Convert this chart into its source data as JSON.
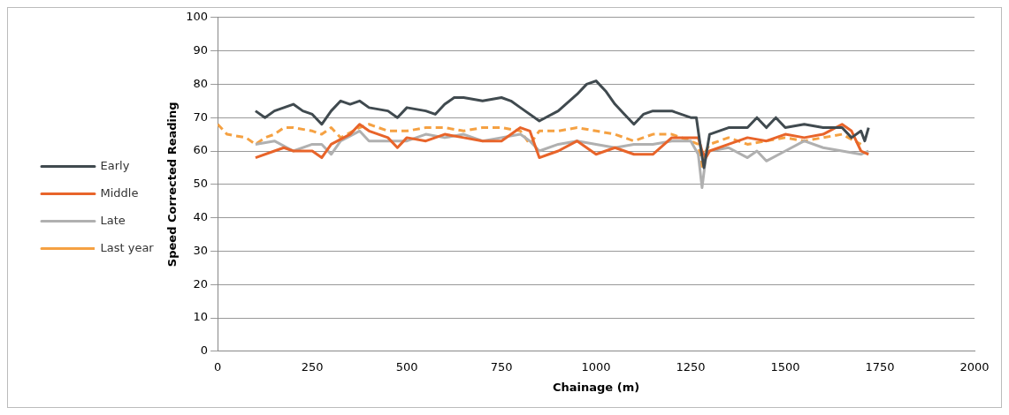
{
  "chart_data": {
    "type": "line",
    "xlabel": "Chainage (m)",
    "ylabel": "Speed Corrected Reading",
    "xlim": [
      0,
      2000
    ],
    "xticks": [
      0,
      250,
      500,
      750,
      1000,
      1250,
      1500,
      1750,
      2000
    ],
    "ylim": [
      0,
      100
    ],
    "yticks": [
      0,
      10,
      20,
      30,
      40,
      50,
      60,
      70,
      80,
      90,
      100
    ],
    "grid": "y",
    "legend": "left",
    "marker": "none",
    "series": [
      {
        "name": "Early",
        "color": "#404a4f",
        "line_style": "solid",
        "x": [
          100,
          125,
          150,
          200,
          225,
          250,
          275,
          300,
          325,
          350,
          375,
          400,
          450,
          475,
          500,
          550,
          575,
          600,
          625,
          650,
          700,
          750,
          775,
          800,
          850,
          900,
          950,
          975,
          1000,
          1025,
          1050,
          1075,
          1100,
          1125,
          1150,
          1200,
          1250,
          1265,
          1275,
          1285,
          1300,
          1350,
          1400,
          1425,
          1450,
          1475,
          1500,
          1550,
          1600,
          1650,
          1675,
          1700,
          1710,
          1720
        ],
        "values": [
          72,
          70,
          72,
          74,
          72,
          71,
          68,
          72,
          75,
          74,
          75,
          73,
          72,
          70,
          73,
          72,
          71,
          74,
          76,
          76,
          75,
          76,
          75,
          73,
          69,
          72,
          77,
          80,
          81,
          78,
          74,
          71,
          68,
          71,
          72,
          72,
          70,
          70,
          62,
          55,
          65,
          67,
          67,
          70,
          67,
          70,
          67,
          68,
          67,
          67,
          64,
          66,
          63,
          67
        ]
      },
      {
        "name": "Middle",
        "color": "#e8642a",
        "line_style": "solid",
        "x": [
          100,
          150,
          175,
          200,
          250,
          275,
          300,
          350,
          375,
          400,
          450,
          475,
          500,
          550,
          600,
          650,
          700,
          750,
          800,
          825,
          850,
          875,
          900,
          950,
          1000,
          1050,
          1100,
          1150,
          1200,
          1250,
          1270,
          1280,
          1290,
          1300,
          1350,
          1400,
          1450,
          1500,
          1550,
          1600,
          1650,
          1675,
          1700,
          1720
        ],
        "values": [
          58,
          60,
          61,
          60,
          60,
          58,
          62,
          65,
          68,
          66,
          64,
          61,
          64,
          63,
          65,
          64,
          63,
          63,
          67,
          66,
          58,
          59,
          60,
          63,
          59,
          61,
          59,
          59,
          64,
          64,
          64,
          60,
          58,
          60,
          62,
          64,
          63,
          65,
          64,
          65,
          68,
          66,
          60,
          59
        ]
      },
      {
        "name": "Late",
        "color": "#b0b0b0",
        "line_style": "solid",
        "x": [
          100,
          150,
          200,
          250,
          275,
          300,
          325,
          375,
          400,
          450,
          500,
          550,
          600,
          650,
          700,
          750,
          800,
          825,
          850,
          900,
          950,
          1000,
          1050,
          1100,
          1150,
          1200,
          1250,
          1270,
          1280,
          1290,
          1300,
          1350,
          1400,
          1425,
          1450,
          1500,
          1550,
          1600,
          1650,
          1700,
          1720
        ],
        "values": [
          62,
          63,
          60,
          62,
          62,
          59,
          63,
          66,
          63,
          63,
          63,
          65,
          64,
          65,
          63,
          64,
          65,
          63,
          60,
          62,
          63,
          62,
          61,
          62,
          62,
          63,
          63,
          59,
          49,
          58,
          60,
          61,
          58,
          60,
          57,
          60,
          63,
          61,
          60,
          59,
          60
        ]
      },
      {
        "name": "Last year",
        "color": "#f5a142",
        "line_style": "dashed",
        "x": [
          0,
          25,
          75,
          100,
          125,
          150,
          175,
          200,
          250,
          275,
          300,
          325,
          375,
          400,
          450,
          500,
          550,
          600,
          650,
          700,
          750,
          800,
          825,
          850,
          900,
          950,
          1000,
          1050,
          1100,
          1150,
          1200,
          1250,
          1270,
          1280,
          1290,
          1300,
          1350,
          1400,
          1450,
          1500,
          1550,
          1600,
          1650,
          1700
        ],
        "values": [
          68,
          65,
          64,
          62,
          64,
          65,
          67,
          67,
          66,
          65,
          67,
          64,
          67,
          68,
          66,
          66,
          67,
          67,
          66,
          67,
          67,
          66,
          62,
          66,
          66,
          67,
          66,
          65,
          63,
          65,
          65,
          63,
          62,
          55,
          60,
          62,
          64,
          62,
          63,
          64,
          63,
          64,
          65,
          62
        ]
      }
    ]
  }
}
